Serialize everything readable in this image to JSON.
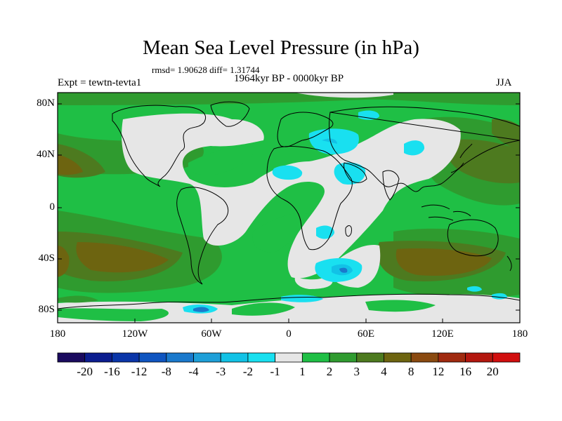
{
  "title": "Mean Sea Level Pressure (in hPa)",
  "stats": "rmsd= 1.90628 diff= 1.31744",
  "experiment": "Expt = tewtn-tevta1",
  "period": "1964kyr BP - 0000kyr BP",
  "season": "JJA",
  "lat_labels": [
    "80N",
    "40N",
    "0",
    "40S",
    "80S"
  ],
  "lon_labels": [
    "180",
    "120W",
    "60W",
    "0",
    "60E",
    "120E",
    "180"
  ],
  "colorbar": {
    "labels": [
      "-20",
      "-16",
      "-12",
      "-8",
      "-4",
      "-3",
      "-2",
      "-1",
      "1",
      "2",
      "3",
      "4",
      "8",
      "12",
      "16",
      "20"
    ],
    "colors": [
      "#1a0a5e",
      "#0c1d8f",
      "#0a35a8",
      "#0f55c0",
      "#1a79cc",
      "#1e9fd8",
      "#12c2e6",
      "#19e0f0",
      "#e6e6e6",
      "#1fbf45",
      "#2f9b2f",
      "#4d7a1f",
      "#6d6410",
      "#8a4a10",
      "#a02a0f",
      "#b3170e",
      "#d10e0e"
    ]
  }
}
